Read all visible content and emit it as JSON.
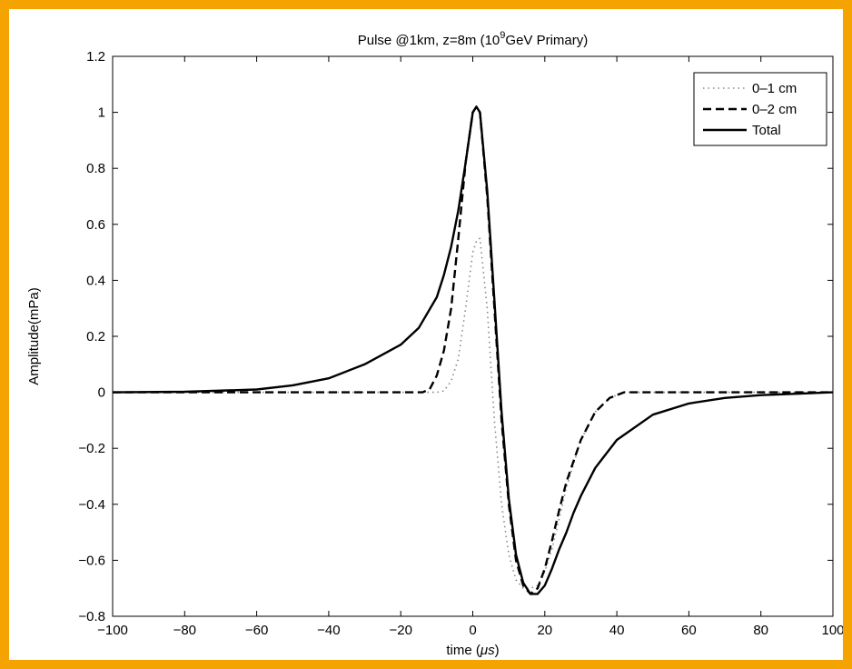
{
  "colors": {
    "frame_border": "#f5a300",
    "plot_background": "#ffffff",
    "series_color": "#000000"
  },
  "chart_data": {
    "type": "line",
    "title_prefix": "Pulse @1km, z=8m (10",
    "title_sup": "9",
    "title_suffix": "GeV Primary)",
    "xlabel_prefix": "time (",
    "xlabel_mu": "μs",
    "xlabel_suffix": ")",
    "ylabel": "Amplitude(mPa)",
    "xlim": [
      -100,
      100
    ],
    "ylim": [
      -0.8,
      1.2
    ],
    "xticks": [
      -100,
      -80,
      -60,
      -40,
      -20,
      0,
      20,
      40,
      60,
      80,
      100
    ],
    "yticks": [
      -0.8,
      -0.6,
      -0.4,
      -0.2,
      0,
      0.2,
      0.4,
      0.6,
      0.8,
      1,
      1.2
    ],
    "xtick_labels": [
      "−100",
      "−80",
      "−60",
      "−40",
      "−20",
      "0",
      "20",
      "40",
      "60",
      "80",
      "100"
    ],
    "ytick_labels": [
      "−0.8",
      "−0.6",
      "−0.4",
      "−0.2",
      "0",
      "0.2",
      "0.4",
      "0.6",
      "0.8",
      "1",
      "1.2"
    ],
    "grid": false,
    "legend_position": "top-right",
    "series": [
      {
        "name": "0–1 cm",
        "style": "dotted",
        "color": "#888888",
        "x": [
          -100,
          -20,
          -10,
          -8,
          -6,
          -4,
          -2,
          0,
          1,
          2,
          4,
          6,
          8,
          10,
          12,
          14,
          16,
          18,
          20,
          22,
          24,
          26,
          30,
          34,
          38,
          42,
          50,
          60,
          100
        ],
        "y": [
          0,
          0,
          0,
          0.005,
          0.04,
          0.12,
          0.3,
          0.5,
          0.54,
          0.55,
          0.3,
          -0.1,
          -0.4,
          -0.58,
          -0.67,
          -0.7,
          -0.7,
          -0.69,
          -0.64,
          -0.56,
          -0.45,
          -0.34,
          -0.17,
          -0.07,
          -0.02,
          0,
          0,
          0,
          0
        ]
      },
      {
        "name": "0–2 cm",
        "style": "dashed",
        "color": "#000000",
        "x": [
          -100,
          -20,
          -14,
          -12,
          -10,
          -8,
          -6,
          -4,
          -2,
          0,
          1,
          2,
          4,
          6,
          8,
          10,
          12,
          14,
          16,
          18,
          20,
          22,
          24,
          26,
          30,
          34,
          38,
          42,
          50,
          60,
          100
        ],
        "y": [
          0,
          0,
          0,
          0.01,
          0.06,
          0.15,
          0.3,
          0.55,
          0.82,
          1.0,
          1.02,
          1.0,
          0.7,
          0.3,
          -0.1,
          -0.4,
          -0.6,
          -0.69,
          -0.72,
          -0.7,
          -0.63,
          -0.53,
          -0.42,
          -0.32,
          -0.17,
          -0.07,
          -0.02,
          0,
          0,
          0,
          0
        ]
      },
      {
        "name": "Total",
        "style": "solid",
        "color": "#000000",
        "x": [
          -100,
          -80,
          -60,
          -50,
          -40,
          -30,
          -20,
          -15,
          -10,
          -8,
          -6,
          -4,
          -2,
          0,
          1,
          2,
          4,
          6,
          8,
          10,
          12,
          14,
          16,
          18,
          20,
          22,
          24,
          26,
          28,
          30,
          34,
          40,
          50,
          60,
          70,
          80,
          100
        ],
        "y": [
          0,
          0.002,
          0.01,
          0.025,
          0.05,
          0.1,
          0.17,
          0.23,
          0.34,
          0.42,
          0.52,
          0.65,
          0.82,
          1.0,
          1.02,
          1.0,
          0.72,
          0.33,
          -0.07,
          -0.38,
          -0.58,
          -0.68,
          -0.72,
          -0.72,
          -0.69,
          -0.63,
          -0.56,
          -0.5,
          -0.43,
          -0.37,
          -0.27,
          -0.17,
          -0.08,
          -0.04,
          -0.02,
          -0.01,
          0
        ]
      }
    ]
  }
}
